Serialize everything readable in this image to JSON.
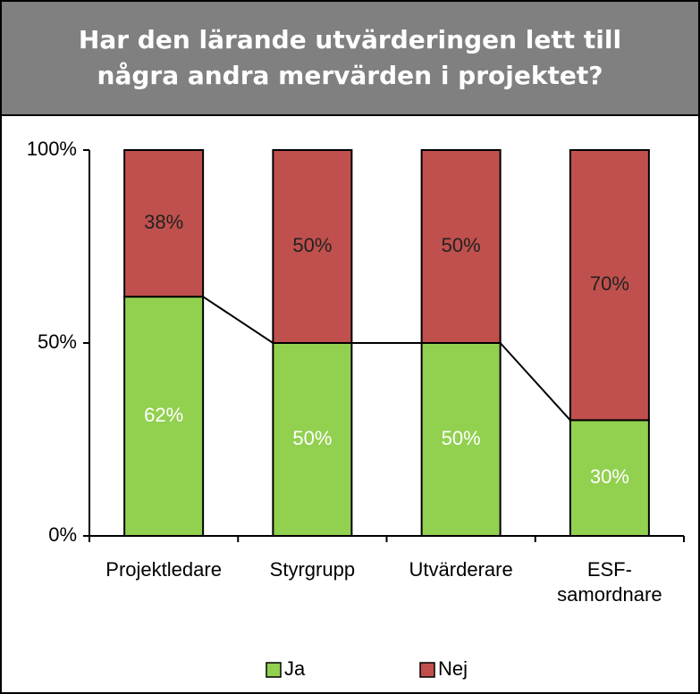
{
  "chart_data": {
    "type": "bar",
    "stacked": true,
    "title": "Har den lärande utvärderingen lett till några andra mervärden i projektet?",
    "categories": [
      "Projektledare",
      "Styrgrupp",
      "Utvärderare",
      "ESF-samordnare"
    ],
    "series": [
      {
        "name": "Ja",
        "color": "#92d050",
        "values": [
          62,
          50,
          50,
          30
        ],
        "value_labels": [
          "62%",
          "50%",
          "50%",
          "30%"
        ]
      },
      {
        "name": "Nej",
        "color": "#c0504d",
        "values": [
          38,
          50,
          50,
          70
        ],
        "value_labels": [
          "38%",
          "50%",
          "50%",
          "70%"
        ]
      }
    ],
    "ylim": [
      0,
      100
    ],
    "yticks": [
      {
        "value": 0,
        "label": "0%"
      },
      {
        "value": 50,
        "label": "50%"
      },
      {
        "value": 100,
        "label": "100%"
      }
    ],
    "legend": "bottom"
  }
}
